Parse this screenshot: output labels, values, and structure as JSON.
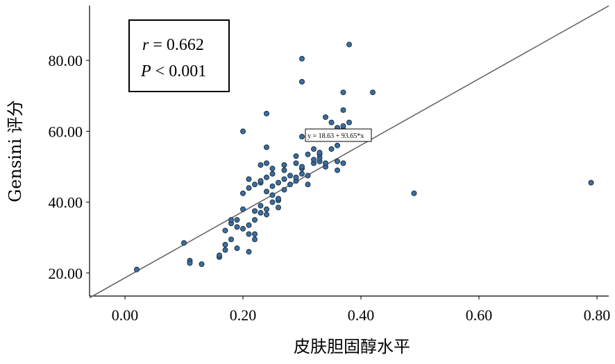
{
  "chart_data": {
    "type": "scatter",
    "xlabel": "皮肤胆固醇水平",
    "ylabel": "Gensini 评分",
    "xlim": [
      -0.06,
      0.82
    ],
    "ylim": [
      13.5,
      95.5
    ],
    "xticks": [
      0.0,
      0.2,
      0.4,
      0.6,
      0.8
    ],
    "yticks": [
      20.0,
      40.0,
      60.0,
      80.0
    ],
    "xtick_labels": [
      "0.00",
      "0.20",
      "0.40",
      "0.60",
      "0.80"
    ],
    "ytick_labels": [
      "20.00",
      "40.00",
      "60.00",
      "80.00"
    ],
    "grid": false,
    "marker_color": "#3b6e9e",
    "marker_edge": "#1c2f45",
    "line_color": "#666666",
    "annotation": {
      "r_symbol": "r",
      "r_value": " = 0.662",
      "p_symbol": "P",
      "p_value": " < 0.001"
    },
    "fit_line": {
      "intercept": 18.63,
      "slope": 93.65,
      "label": "y = 18.63 + 93.65*x"
    },
    "points": [
      [
        0.02,
        21.0
      ],
      [
        0.1,
        28.5
      ],
      [
        0.11,
        23.5
      ],
      [
        0.11,
        22.8
      ],
      [
        0.13,
        22.5
      ],
      [
        0.16,
        24.5
      ],
      [
        0.16,
        25.0
      ],
      [
        0.17,
        26.5
      ],
      [
        0.17,
        28.0
      ],
      [
        0.17,
        32.0
      ],
      [
        0.18,
        29.5
      ],
      [
        0.18,
        34.0
      ],
      [
        0.18,
        35.0
      ],
      [
        0.19,
        33.0
      ],
      [
        0.19,
        35.0
      ],
      [
        0.19,
        27.0
      ],
      [
        0.2,
        32.5
      ],
      [
        0.2,
        38.0
      ],
      [
        0.2,
        42.5
      ],
      [
        0.2,
        60.0
      ],
      [
        0.21,
        26.0
      ],
      [
        0.21,
        31.0
      ],
      [
        0.21,
        33.5
      ],
      [
        0.21,
        44.0
      ],
      [
        0.21,
        46.5
      ],
      [
        0.22,
        29.5
      ],
      [
        0.22,
        31.0
      ],
      [
        0.22,
        35.0
      ],
      [
        0.22,
        37.5
      ],
      [
        0.22,
        45.0
      ],
      [
        0.23,
        37.0
      ],
      [
        0.23,
        39.0
      ],
      [
        0.23,
        45.5
      ],
      [
        0.23,
        46.0
      ],
      [
        0.23,
        50.5
      ],
      [
        0.24,
        36.5
      ],
      [
        0.24,
        38.0
      ],
      [
        0.24,
        43.0
      ],
      [
        0.24,
        47.0
      ],
      [
        0.24,
        51.0
      ],
      [
        0.24,
        55.5
      ],
      [
        0.24,
        65.0
      ],
      [
        0.25,
        40.0
      ],
      [
        0.25,
        42.0
      ],
      [
        0.25,
        44.5
      ],
      [
        0.25,
        48.0
      ],
      [
        0.25,
        49.5
      ],
      [
        0.26,
        38.5
      ],
      [
        0.26,
        40.5
      ],
      [
        0.26,
        41.0
      ],
      [
        0.26,
        45.5
      ],
      [
        0.27,
        43.5
      ],
      [
        0.27,
        46.5
      ],
      [
        0.27,
        49.0
      ],
      [
        0.27,
        50.5
      ],
      [
        0.28,
        45.0
      ],
      [
        0.28,
        47.5
      ],
      [
        0.29,
        46.0
      ],
      [
        0.29,
        47.0
      ],
      [
        0.29,
        51.0
      ],
      [
        0.29,
        53.0
      ],
      [
        0.3,
        48.0
      ],
      [
        0.3,
        49.5
      ],
      [
        0.3,
        50.0
      ],
      [
        0.3,
        58.5
      ],
      [
        0.3,
        74.0
      ],
      [
        0.3,
        80.5
      ],
      [
        0.31,
        45.0
      ],
      [
        0.31,
        47.5
      ],
      [
        0.31,
        53.5
      ],
      [
        0.32,
        51.0
      ],
      [
        0.32,
        52.0
      ],
      [
        0.32,
        55.0
      ],
      [
        0.33,
        51.5
      ],
      [
        0.33,
        52.5
      ],
      [
        0.33,
        53.5
      ],
      [
        0.33,
        54.0
      ],
      [
        0.34,
        50.0
      ],
      [
        0.34,
        51.0
      ],
      [
        0.34,
        64.0
      ],
      [
        0.35,
        55.0
      ],
      [
        0.35,
        62.5
      ],
      [
        0.36,
        49.0
      ],
      [
        0.36,
        51.5
      ],
      [
        0.36,
        56.0
      ],
      [
        0.36,
        61.0
      ],
      [
        0.37,
        51.0
      ],
      [
        0.37,
        58.0
      ],
      [
        0.37,
        59.0
      ],
      [
        0.37,
        60.5
      ],
      [
        0.37,
        61.5
      ],
      [
        0.37,
        66.0
      ],
      [
        0.37,
        71.0
      ],
      [
        0.38,
        62.5
      ],
      [
        0.38,
        84.5
      ],
      [
        0.41,
        59.0
      ],
      [
        0.42,
        71.0
      ],
      [
        0.49,
        42.5
      ],
      [
        0.79,
        45.5
      ]
    ]
  }
}
